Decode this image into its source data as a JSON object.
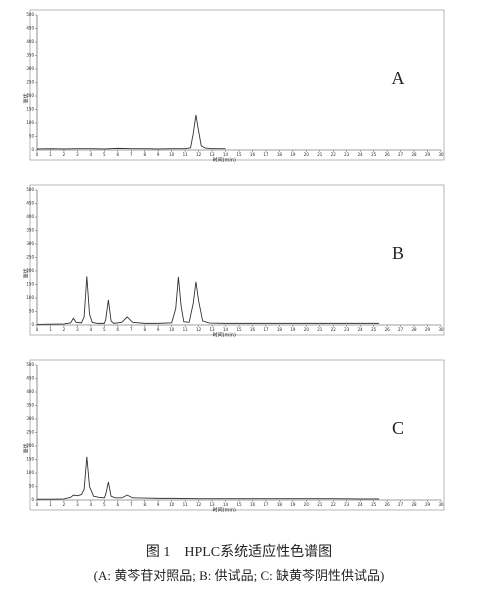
{
  "chart_data": [
    {
      "type": "line",
      "label": "A",
      "xlabel": "时间(min)",
      "ylabel": "毫伏",
      "color": "#333333",
      "x": [
        0,
        1,
        2,
        3,
        4,
        5,
        6,
        7,
        8,
        9,
        10,
        11,
        11.4,
        11.6,
        11.8,
        12.0,
        12.2,
        12.5,
        13,
        14
      ],
      "values": [
        4,
        5,
        4,
        5,
        5,
        4,
        6,
        5,
        5,
        4,
        5,
        5,
        8,
        60,
        130,
        70,
        15,
        7,
        5,
        5
      ],
      "xlim": [
        0,
        30
      ],
      "xticks": [
        0,
        1,
        2,
        3,
        4,
        5,
        6,
        7,
        8,
        9,
        10,
        11,
        12,
        13,
        14,
        15,
        16,
        17,
        18,
        19,
        20,
        21,
        22,
        23,
        24,
        25,
        26,
        27,
        28,
        29,
        30
      ],
      "ylim": [
        0,
        500
      ],
      "yticks": [
        0,
        50,
        100,
        150,
        200,
        250,
        300,
        350,
        400,
        450,
        500
      ]
    },
    {
      "type": "line",
      "label": "B",
      "xlabel": "时间(min)",
      "ylabel": "毫伏",
      "color": "#333333",
      "x": [
        0,
        1,
        2,
        2.5,
        2.7,
        2.9,
        3.3,
        3.5,
        3.7,
        3.9,
        4.1,
        4.5,
        5,
        5.1,
        5.3,
        5.5,
        5.7,
        6.3,
        6.7,
        7.1,
        8,
        9,
        10,
        10.3,
        10.5,
        10.7,
        10.9,
        11.3,
        11.6,
        11.8,
        12.0,
        12.3,
        12.8,
        14,
        16,
        18,
        20,
        22,
        24,
        25.4
      ],
      "values": [
        2,
        3,
        4,
        8,
        25,
        10,
        8,
        30,
        180,
        40,
        10,
        6,
        6,
        20,
        93,
        15,
        6,
        10,
        30,
        10,
        6,
        6,
        8,
        60,
        178,
        70,
        12,
        10,
        80,
        160,
        90,
        15,
        7,
        6,
        6,
        6,
        6,
        6,
        6,
        6
      ],
      "xlim": [
        0,
        30
      ],
      "xticks": [
        0,
        1,
        2,
        3,
        4,
        5,
        6,
        7,
        8,
        9,
        10,
        11,
        12,
        13,
        14,
        15,
        16,
        17,
        18,
        19,
        20,
        21,
        22,
        23,
        24,
        25,
        26,
        27,
        28,
        29,
        30
      ],
      "ylim": [
        0,
        500
      ],
      "yticks": [
        0,
        50,
        100,
        150,
        200,
        250,
        300,
        350,
        400,
        450,
        500
      ]
    },
    {
      "type": "line",
      "label": "C",
      "xlabel": "时间(min)",
      "ylabel": "毫伏",
      "color": "#333333",
      "x": [
        0,
        1,
        2,
        2.5,
        2.7,
        3.0,
        3.3,
        3.5,
        3.7,
        3.9,
        4.2,
        4.6,
        5.0,
        5.1,
        5.3,
        5.5,
        5.8,
        6.3,
        6.7,
        7.1,
        8,
        9,
        10,
        12,
        14,
        16,
        18,
        20,
        22,
        24,
        25.4
      ],
      "values": [
        3,
        3,
        4,
        10,
        18,
        16,
        20,
        40,
        160,
        50,
        14,
        10,
        8,
        20,
        67,
        14,
        8,
        8,
        18,
        8,
        7,
        6,
        6,
        5,
        5,
        5,
        5,
        5,
        5,
        4,
        4
      ],
      "xlim": [
        0,
        30
      ],
      "xticks": [
        0,
        1,
        2,
        3,
        4,
        5,
        6,
        7,
        8,
        9,
        10,
        11,
        12,
        13,
        14,
        15,
        16,
        17,
        18,
        19,
        20,
        21,
        22,
        23,
        24,
        25,
        26,
        27,
        28,
        29,
        30
      ],
      "ylim": [
        0,
        500
      ],
      "yticks": [
        0,
        50,
        100,
        150,
        200,
        250,
        300,
        350,
        400,
        450,
        500
      ]
    }
  ],
  "caption": {
    "title": "图 1　HPLC系统适应性色谱图",
    "subtitle": "(A: 黄芩苷对照品; B: 供试品; C: 缺黄芩阴性供试品)"
  }
}
